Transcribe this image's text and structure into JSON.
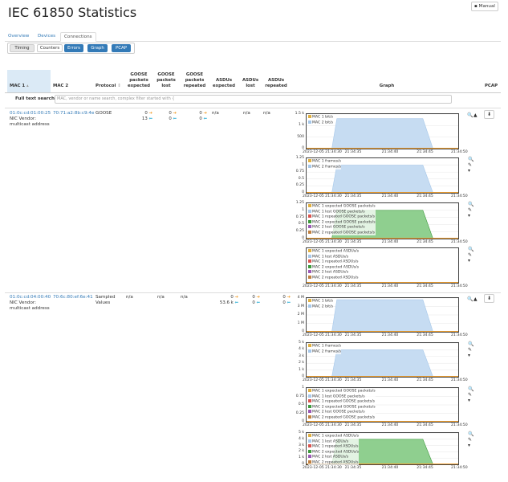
{
  "page": {
    "title": "IEC 61850 Statistics",
    "manual": "Manual"
  },
  "nav": {
    "tabs": [
      "Overview",
      "Devices",
      "Connections"
    ],
    "active": 2
  },
  "views": {
    "buttons": [
      "Timing",
      "Counters",
      "Errors",
      "Graph",
      "PCAP"
    ]
  },
  "table": {
    "headers": {
      "mac1": "MAC 1",
      "mac2": "MAC 2",
      "protocol": "Protocol",
      "gexp1": "GOOSE",
      "gexp2": "packets",
      "gexp3": "expected",
      "glost1": "GOOSE",
      "glost2": "packets",
      "glost3": "lost",
      "grep1": "GOOSE",
      "grep2": "packets",
      "grep3": "repeated",
      "aexp1": "ASDUs",
      "aexp2": "expected",
      "alost1": "ASDUs",
      "alost2": "lost",
      "arep1": "ASDUs",
      "arep2": "repeated",
      "graph": "Graph",
      "pcap": "PCAP"
    },
    "fts_label": "Full text search",
    "fts_placeholder": "MAC, vendor or name search, complex filter started with {",
    "rows": [
      {
        "mac1": "01:0c:cd:01:00:25",
        "mac2": "70:71:a2:8b:c9:4e",
        "vendor": "NIC Vendor:",
        "vendor2": "multicast address",
        "protocol": "GOOSE",
        "protocol2": "",
        "gexp_a": "0",
        "gexp_b": "13",
        "glost_a": "0",
        "glost_b": "0",
        "grep_a": "0",
        "grep_b": "0",
        "aexp": "n/a",
        "alost": "n/a",
        "arep": "n/a"
      },
      {
        "mac1": "01:0c:cd:04:00:40",
        "mac2": "70:6c:80:ef:6e:41",
        "vendor": "NIC Vendor:",
        "vendor2": "multicast address",
        "protocol": "Sampled",
        "protocol2": "Values",
        "gexp": "n/a",
        "glost": "n/a",
        "grep": "n/a",
        "aexp_a": "0",
        "aexp_b": "53.6 k",
        "alost_a": "0",
        "alost_b": "0",
        "arep_a": "0",
        "arep_b": "0"
      }
    ]
  },
  "icons": {
    "zoom": "zoom-icon",
    "chart": "area-chart-icon",
    "pan": "pan-icon",
    "menu": "menu-icon",
    "download": "download-icon",
    "book": "book-icon"
  },
  "colors": {
    "blue_fill": "#c6dcf2",
    "blue_line": "#a6c8ea",
    "green_fill": "#8fcf8f",
    "green_line": "#3c9a3c",
    "orange_line": "#f0a030",
    "link": "#337ab7"
  },
  "chart_data": [
    {
      "type": "area",
      "ylim": [
        0,
        1500
      ],
      "yticks": [
        "1.5 k",
        "1 k",
        "500",
        "0"
      ],
      "xticks": [
        "2023-12-05 21:34:30",
        "21:34:35",
        "21:34:40",
        "21:34:45",
        "21:34:50"
      ],
      "series": [
        {
          "name": "MAC 1 bit/s",
          "color": "#e0b040",
          "x": [
            0,
            5,
            23,
            30
          ],
          "y": [
            0,
            0,
            0,
            0
          ]
        },
        {
          "name": "MAC 2 bit/s",
          "color": "#a6c8ea",
          "x": [
            0,
            5,
            6,
            23,
            25,
            30
          ],
          "y": [
            0,
            0,
            1300,
            1300,
            0,
            0
          ]
        }
      ]
    },
    {
      "type": "area",
      "ylim": [
        0,
        1.25
      ],
      "yticks": [
        "1.25",
        "1",
        "0.75",
        "0.5",
        "0.25",
        "0"
      ],
      "xticks": [
        "2023-12-05 21:34:30",
        "21:34:35",
        "21:34:40",
        "21:34:45",
        "21:34:50"
      ],
      "series": [
        {
          "name": "MAC 1 frames/s",
          "color": "#e0b040",
          "x": [
            0,
            30
          ],
          "y": [
            0,
            0
          ]
        },
        {
          "name": "MAC 2 frames/s",
          "color": "#a6c8ea",
          "x": [
            0,
            5,
            6,
            23,
            25,
            30
          ],
          "y": [
            0,
            0,
            1,
            1,
            0,
            0
          ]
        }
      ]
    },
    {
      "type": "area",
      "ylim": [
        0,
        1.25
      ],
      "yticks": [
        "1.25",
        "1",
        "0.75",
        "0.5",
        "0.25",
        "0"
      ],
      "xticks": [
        "2023-12-05 21:34:30",
        "21:34:35",
        "21:34:40",
        "21:34:45",
        "21:34:50"
      ],
      "series": [
        {
          "name": "MAC 1 expected GOOSE packets/s",
          "color": "#e0b040",
          "x": [
            0,
            30
          ],
          "y": [
            0,
            0
          ]
        },
        {
          "name": "MAC 1 lost GOOSE packets/s",
          "color": "#a6c8ea",
          "x": [
            0,
            30
          ],
          "y": [
            0,
            0
          ]
        },
        {
          "name": "MAC 1 repeated GOOSE packets/s",
          "color": "#d9534f",
          "x": [
            0,
            30
          ],
          "y": [
            0,
            0
          ]
        },
        {
          "name": "MAC 2 expected GOOSE packets/s",
          "color": "#3c9a3c",
          "x": [
            0,
            5,
            6,
            23,
            25,
            30
          ],
          "y": [
            0,
            0,
            1,
            1,
            0,
            0
          ]
        },
        {
          "name": "MAC 2 lost GOOSE packets/s",
          "color": "#9b59b6",
          "x": [
            0,
            30
          ],
          "y": [
            0,
            0
          ]
        },
        {
          "name": "MAC 2 repeated GOOSE packets/s",
          "color": "#c08040",
          "x": [
            0,
            30
          ],
          "y": [
            0,
            0
          ]
        }
      ]
    },
    {
      "type": "area",
      "ylim": [
        0,
        1
      ],
      "yticks": [],
      "xticks": [
        "2023-12-05 21:34:30",
        "21:34:35",
        "21:34:40",
        "21:34:45",
        "21:34:50"
      ],
      "series": [
        {
          "name": "MAC 1 expected ASDUs/s",
          "color": "#e0b040",
          "x": [
            0,
            30
          ],
          "y": [
            0,
            0
          ]
        },
        {
          "name": "MAC 1 lost ASDUs/s",
          "color": "#a6c8ea",
          "x": [
            0,
            30
          ],
          "y": [
            0,
            0
          ]
        },
        {
          "name": "MAC 1 repeated ASDUs/s",
          "color": "#d9534f",
          "x": [
            0,
            30
          ],
          "y": [
            0,
            0
          ]
        },
        {
          "name": "MAC 2 expected ASDUs/s",
          "color": "#3c9a3c",
          "x": [
            0,
            30
          ],
          "y": [
            0,
            0
          ]
        },
        {
          "name": "MAC 2 lost ASDUs/s",
          "color": "#9b59b6",
          "x": [
            0,
            30
          ],
          "y": [
            0,
            0
          ]
        },
        {
          "name": "MAC 2 repeated ASDUs/s",
          "color": "#c08040",
          "x": [
            0,
            30
          ],
          "y": [
            0,
            0
          ]
        }
      ]
    },
    {
      "type": "area",
      "ylim": [
        0,
        4000000
      ],
      "yticks": [
        "4 M",
        "3 M",
        "2 M",
        "1 M",
        "0"
      ],
      "xticks": [
        "2023-12-05 21:34:30",
        "21:34:35",
        "21:34:40",
        "21:34:45",
        "21:34:50"
      ],
      "series": [
        {
          "name": "MAC 1 bit/s",
          "color": "#e0b040",
          "x": [
            0,
            30
          ],
          "y": [
            0,
            0
          ]
        },
        {
          "name": "MAC 2 bit/s",
          "color": "#a6c8ea",
          "x": [
            0,
            5,
            6,
            23,
            25,
            30
          ],
          "y": [
            0,
            0,
            3800000,
            3800000,
            0,
            0
          ]
        }
      ]
    },
    {
      "type": "area",
      "ylim": [
        0,
        5000
      ],
      "yticks": [
        "5 k",
        "4 k",
        "3 k",
        "2 k",
        "1 k",
        "0"
      ],
      "xticks": [
        "2023-12-05 21:34:30",
        "21:34:35",
        "21:34:40",
        "21:34:45",
        "21:34:50"
      ],
      "series": [
        {
          "name": "MAC 1 frames/s",
          "color": "#e0b040",
          "x": [
            0,
            30
          ],
          "y": [
            0,
            0
          ]
        },
        {
          "name": "MAC 2 frames/s",
          "color": "#a6c8ea",
          "x": [
            0,
            5,
            6,
            23,
            25,
            30
          ],
          "y": [
            0,
            0,
            4000,
            4000,
            0,
            0
          ]
        }
      ]
    },
    {
      "type": "area",
      "ylim": [
        0,
        1
      ],
      "yticks": [
        "1",
        "0.75",
        "0.5",
        "0.25",
        "0"
      ],
      "xticks": [
        "2023-12-05 21:34:30",
        "21:34:35",
        "21:34:40",
        "21:34:45",
        "21:34:50"
      ],
      "series": [
        {
          "name": "MAC 1 expected GOOSE packets/s",
          "color": "#e0b040",
          "x": [
            0,
            30
          ],
          "y": [
            0,
            0
          ]
        },
        {
          "name": "MAC 1 lost GOOSE packets/s",
          "color": "#a6c8ea",
          "x": [
            0,
            30
          ],
          "y": [
            0,
            0
          ]
        },
        {
          "name": "MAC 1 repeated GOOSE packets/s",
          "color": "#d9534f",
          "x": [
            0,
            30
          ],
          "y": [
            0,
            0
          ]
        },
        {
          "name": "MAC 2 expected GOOSE packets/s",
          "color": "#3c9a3c",
          "x": [
            0,
            30
          ],
          "y": [
            0,
            0
          ]
        },
        {
          "name": "MAC 2 lost GOOSE packets/s",
          "color": "#9b59b6",
          "x": [
            0,
            30
          ],
          "y": [
            0,
            0
          ]
        },
        {
          "name": "MAC 2 repeated GOOSE packets/s",
          "color": "#c08040",
          "x": [
            0,
            30
          ],
          "y": [
            0,
            0
          ]
        }
      ]
    },
    {
      "type": "area",
      "ylim": [
        0,
        5000
      ],
      "yticks": [
        "5 k",
        "4 k",
        "3 k",
        "2 k",
        "1 k",
        "0"
      ],
      "xticks": [
        "2023-12-05 21:34:30",
        "21:34:35",
        "21:34:40",
        "21:34:45",
        "21:34:50"
      ],
      "series": [
        {
          "name": "MAC 1 expected ASDUs/s",
          "color": "#e0b040",
          "x": [
            0,
            30
          ],
          "y": [
            0,
            0
          ]
        },
        {
          "name": "MAC 1 lost ASDUs/s",
          "color": "#a6c8ea",
          "x": [
            0,
            30
          ],
          "y": [
            0,
            0
          ]
        },
        {
          "name": "MAC 1 repeated ASDUs/s",
          "color": "#d9534f",
          "x": [
            0,
            30
          ],
          "y": [
            0,
            0
          ]
        },
        {
          "name": "MAC 2 expected ASDUs/s",
          "color": "#3c9a3c",
          "x": [
            0,
            5,
            6,
            23,
            25,
            30
          ],
          "y": [
            0,
            0,
            4000,
            4000,
            0,
            0
          ]
        },
        {
          "name": "MAC 2 lost ASDUs/s",
          "color": "#9b59b6",
          "x": [
            0,
            30
          ],
          "y": [
            0,
            0
          ]
        },
        {
          "name": "MAC 2 repeated ASDUs/s",
          "color": "#c08040",
          "x": [
            0,
            30
          ],
          "y": [
            0,
            0
          ]
        }
      ]
    }
  ]
}
